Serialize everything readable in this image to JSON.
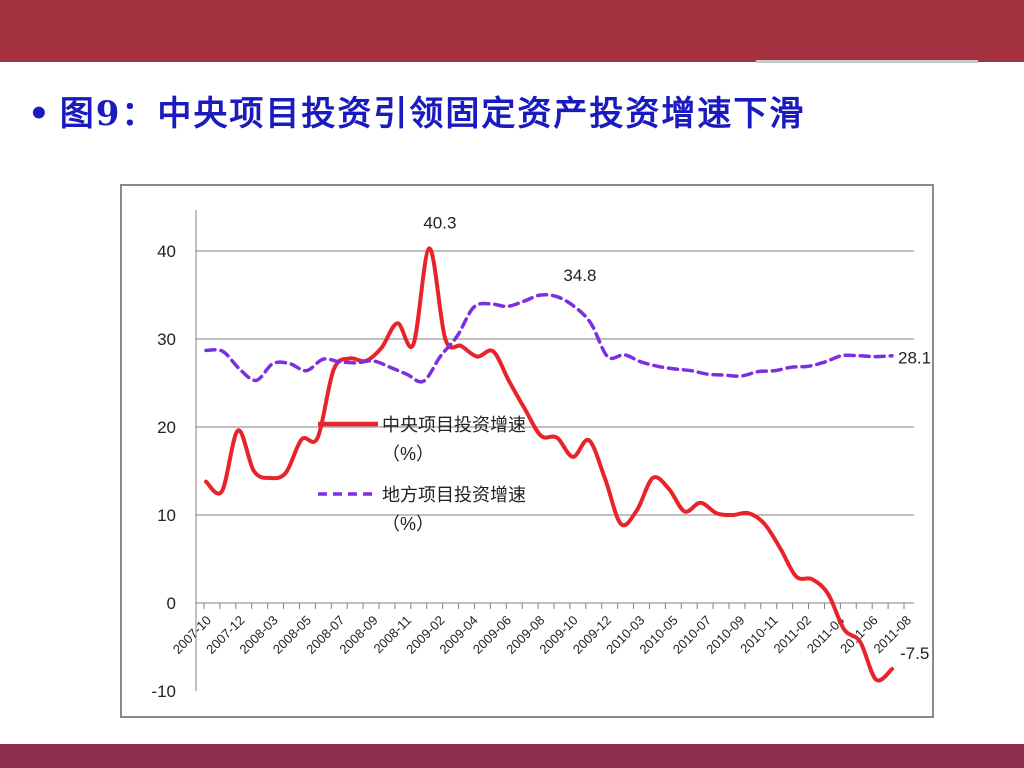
{
  "slide": {
    "bullet": "•",
    "title": "图9：中央项目投资引领固定资产投资增速下滑"
  },
  "colors": {
    "top_band": "#a53241",
    "bottom_band": "#8d2e4e",
    "title_text": "#1a1abf",
    "series_central": "#e8242a",
    "series_local": "#7b2fe0",
    "grid": "#808080"
  },
  "chart_data": {
    "type": "line",
    "title": "",
    "xlabel": "",
    "ylabel": "",
    "ylim": [
      -10,
      40
    ],
    "y_ticks": [
      "40",
      "30",
      "20",
      "10",
      "0",
      "-10"
    ],
    "y_tick_values": [
      40,
      30,
      20,
      10,
      0,
      -10
    ],
    "x_tick_labels": [
      "2007-10",
      "2007-12",
      "2008-03",
      "2008-05",
      "2008-07",
      "2008-09",
      "2008-11",
      "2009-02",
      "2009-04",
      "2009-06",
      "2009-08",
      "2009-10",
      "2009-12",
      "2010-03",
      "2010-05",
      "2010-07",
      "2010-09",
      "2010-11",
      "2011-02",
      "2011-04",
      "2011-06",
      "2011-08"
    ],
    "grid": true,
    "legend": {
      "placement": "center-left"
    },
    "series": [
      {
        "name": "中央项目投资增速（%）",
        "legend_line1": "中央项目投资增速",
        "legend_line2": "（%）",
        "style": "solid",
        "values": [
          13.8,
          12.7,
          19.6,
          15.0,
          14.2,
          14.8,
          18.6,
          18.8,
          26.5,
          27.8,
          27.5,
          29.0,
          31.8,
          29.4,
          40.3,
          30.0,
          29.2,
          28.0,
          28.6,
          25.2,
          22.0,
          19.0,
          18.8,
          16.6,
          18.5,
          14.2,
          9.0,
          10.5,
          14.2,
          13.0,
          10.4,
          11.4,
          10.2,
          10.0,
          10.2,
          9.0,
          6.2,
          3.0,
          2.7,
          1.0,
          -3.0,
          -4.4,
          -8.7,
          -7.5
        ]
      },
      {
        "name": "地方项目投资增速（%）",
        "legend_line1": "地方项目投资增速",
        "legend_line2": "（%）",
        "style": "dashed",
        "values": [
          28.7,
          28.6,
          26.6,
          25.3,
          27.2,
          27.2,
          26.4,
          27.7,
          27.4,
          27.3,
          27.5,
          26.8,
          26.0,
          25.2,
          28.0,
          30.3,
          33.6,
          34.0,
          33.7,
          34.3,
          35.0,
          34.8,
          33.7,
          31.8,
          28.0,
          28.2,
          27.4,
          26.9,
          26.6,
          26.4,
          26.0,
          25.9,
          25.8,
          26.3,
          26.4,
          26.8,
          26.9,
          27.4,
          28.1,
          28.1,
          28.0,
          28.1
        ]
      }
    ],
    "annotations": [
      {
        "label": "40.3",
        "series": 0,
        "index": 14
      },
      {
        "label": "34.8",
        "series": 1,
        "index": 21
      },
      {
        "label": "28.1",
        "series": 1,
        "index": 41
      },
      {
        "label": "-7.5",
        "series": 0,
        "index": 43
      }
    ]
  }
}
